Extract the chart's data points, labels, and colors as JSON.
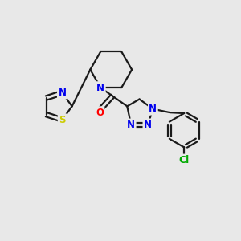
{
  "bg_color": "#e8e8e8",
  "bond_color": "#1a1a1a",
  "bond_width": 1.6,
  "atom_colors": {
    "N": "#0000ee",
    "S": "#cccc00",
    "O": "#ff0000",
    "Cl": "#00aa00",
    "C": "#1a1a1a"
  },
  "font_size_atom": 8.5
}
